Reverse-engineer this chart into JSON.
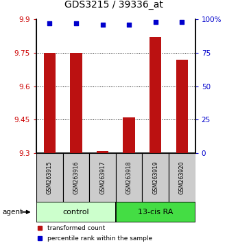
{
  "title": "GDS3215 / 39336_at",
  "samples": [
    "GSM263915",
    "GSM263916",
    "GSM263917",
    "GSM263918",
    "GSM263919",
    "GSM263920"
  ],
  "bar_values": [
    9.75,
    9.75,
    9.31,
    9.46,
    9.82,
    9.72
  ],
  "percentile_y_values": [
    97,
    97,
    96,
    96,
    98,
    98
  ],
  "bar_color": "#bb1111",
  "dot_color": "#0000cc",
  "ymin": 9.3,
  "ymax": 9.9,
  "yticks_left": [
    9.3,
    9.45,
    9.6,
    9.75,
    9.9
  ],
  "yticks_right": [
    0,
    25,
    50,
    75,
    100
  ],
  "grid_yticks": [
    9.45,
    9.6,
    9.75
  ],
  "groups": [
    {
      "label": "control",
      "indices": [
        0,
        1,
        2
      ],
      "color": "#ccffcc",
      "border": "#000000"
    },
    {
      "label": "13-cis RA",
      "indices": [
        3,
        4,
        5
      ],
      "color": "#44dd44",
      "border": "#000000"
    }
  ],
  "legend_items": [
    {
      "label": "transformed count",
      "color": "#bb1111"
    },
    {
      "label": "percentile rank within the sample",
      "color": "#0000cc"
    }
  ],
  "agent_label": "agent",
  "background_color": "#ffffff",
  "sample_box_color": "#cccccc",
  "bar_width": 0.45
}
